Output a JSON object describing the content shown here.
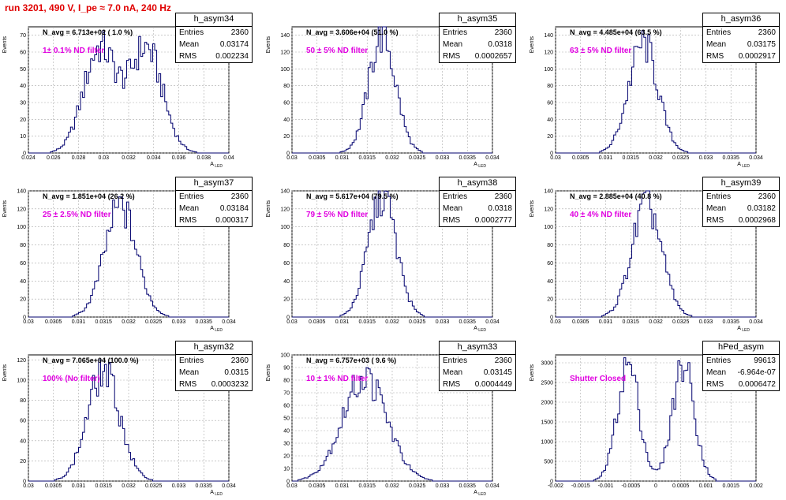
{
  "title": "run 3201,   490 V, I_pe ≈ 7.0 nA, 240 Hz",
  "chart_data": [
    {
      "type": "histogram",
      "name": "h_asym34",
      "navg": "N_avg = 6.713e+02 ( 1.0 %)",
      "filter": "1± 0.1% ND filter",
      "stats": {
        "Entries": "2360",
        "Mean": "0.03174",
        "RMS": "0.002234"
      },
      "xlim": [
        0.024,
        0.04
      ],
      "ylim": [
        0,
        75
      ],
      "xticks": [
        "0.024",
        "0.026",
        "0.028",
        "0.03",
        "0.032",
        "0.034",
        "0.036",
        "0.038",
        "0.04"
      ],
      "yticks": [
        0,
        10,
        20,
        30,
        40,
        50,
        60,
        70
      ],
      "ylabel": "Events",
      "xlabel": "A_{LED}",
      "mode": "bimodal",
      "peaks": [
        0.0297,
        0.0334
      ],
      "sigma": 0.0013,
      "peak_height": 62
    },
    {
      "type": "histogram",
      "name": "h_asym35",
      "navg": "N_avg = 3.606e+04 (51.0 %)",
      "filter": "50 ± 5% ND filter",
      "stats": {
        "Entries": "2360",
        "Mean": "0.0318",
        "RMS": "0.0002657"
      },
      "xlim": [
        0.03,
        0.034
      ],
      "ylim": [
        0,
        150
      ],
      "xticks": [
        "0.03",
        "0.0305",
        "0.031",
        "0.0315",
        "0.032",
        "0.0325",
        "0.033",
        "0.0335",
        "0.034"
      ],
      "yticks": [
        0,
        20,
        40,
        60,
        80,
        100,
        120,
        140
      ],
      "ylabel": "Events",
      "xlabel": "A_{LED}",
      "mode": "gauss",
      "peaks": [
        0.0318
      ],
      "sigma": 0.000266,
      "peak_height": 140
    },
    {
      "type": "histogram",
      "name": "h_asym36",
      "navg": "N_avg = 4.485e+04 (63.5 %)",
      "filter": "63 ± 5% ND filter",
      "stats": {
        "Entries": "2360",
        "Mean": "0.03175",
        "RMS": "0.0002917"
      },
      "xlim": [
        0.03,
        0.034
      ],
      "ylim": [
        0,
        150
      ],
      "xticks": [
        "0.03",
        "0.0305",
        "0.031",
        "0.0315",
        "0.032",
        "0.0325",
        "0.033",
        "0.0335",
        "0.034"
      ],
      "yticks": [
        0,
        20,
        40,
        60,
        80,
        100,
        120,
        140
      ],
      "ylabel": "Events",
      "xlabel": "A_{LED}",
      "mode": "gauss",
      "peaks": [
        0.03175
      ],
      "sigma": 0.00029,
      "peak_height": 130
    },
    {
      "type": "histogram",
      "name": "h_asym37",
      "navg": "N_avg = 1.851e+04 (26.2 %)",
      "filter": "25 ± 2.5% ND filter",
      "stats": {
        "Entries": "2360",
        "Mean": "0.03184",
        "RMS": "0.000317"
      },
      "xlim": [
        0.03,
        0.034
      ],
      "ylim": [
        0,
        140
      ],
      "xticks": [
        "0.03",
        "0.0305",
        "0.031",
        "0.0315",
        "0.032",
        "0.0325",
        "0.033",
        "0.0335",
        "0.034"
      ],
      "yticks": [
        0,
        20,
        40,
        60,
        80,
        100,
        120,
        140
      ],
      "ylabel": "Events",
      "xlabel": "A_{LED}",
      "mode": "gauss",
      "peaks": [
        0.03184
      ],
      "sigma": 0.000317,
      "peak_height": 122
    },
    {
      "type": "histogram",
      "name": "h_asym38",
      "navg": "N_avg = 5.617e+04 (79.5 %)",
      "filter": "79 ± 5% ND filter",
      "stats": {
        "Entries": "2360",
        "Mean": "0.0318",
        "RMS": "0.0002777"
      },
      "xlim": [
        0.03,
        0.034
      ],
      "ylim": [
        0,
        140
      ],
      "xticks": [
        "0.03",
        "0.0305",
        "0.031",
        "0.0315",
        "0.032",
        "0.0325",
        "0.033",
        "0.0335",
        "0.034"
      ],
      "yticks": [
        0,
        20,
        40,
        60,
        80,
        100,
        120,
        140
      ],
      "ylabel": "Events",
      "xlabel": "A_{LED}",
      "mode": "gauss",
      "peaks": [
        0.0318
      ],
      "sigma": 0.000278,
      "peak_height": 135
    },
    {
      "type": "histogram",
      "name": "h_asym39",
      "navg": "N_avg = 2.885e+04 (40.8 %)",
      "filter": "40 ± 4% ND filter",
      "stats": {
        "Entries": "2360",
        "Mean": "0.03182",
        "RMS": "0.0002968"
      },
      "xlim": [
        0.03,
        0.034
      ],
      "ylim": [
        0,
        140
      ],
      "xticks": [
        "0.03",
        "0.0305",
        "0.031",
        "0.0315",
        "0.032",
        "0.0325",
        "0.033",
        "0.0335",
        "0.034"
      ],
      "yticks": [
        0,
        20,
        40,
        60,
        80,
        100,
        120,
        140
      ],
      "ylabel": "Events",
      "xlabel": "A_{LED}",
      "mode": "gauss",
      "peaks": [
        0.03182
      ],
      "sigma": 0.000297,
      "peak_height": 125
    },
    {
      "type": "histogram",
      "name": "h_asym32",
      "navg": "N_avg = 7.065e+04 (100.0 %)",
      "filter": "100% (No filter)",
      "stats": {
        "Entries": "2360",
        "Mean": "0.0315",
        "RMS": "0.0003232"
      },
      "xlim": [
        0.03,
        0.034
      ],
      "ylim": [
        0,
        125
      ],
      "xticks": [
        "0.03",
        "0.0305",
        "0.031",
        "0.0315",
        "0.032",
        "0.0325",
        "0.033",
        "0.0335",
        "0.034"
      ],
      "yticks": [
        0,
        20,
        40,
        60,
        80,
        100,
        120
      ],
      "ylabel": "Events",
      "xlabel": "A_{LED}",
      "mode": "gauss",
      "peaks": [
        0.0315
      ],
      "sigma": 0.000323,
      "peak_height": 108
    },
    {
      "type": "histogram",
      "name": "h_asym33",
      "navg": "N_avg = 6.757e+03 ( 9.6 %)",
      "filter": "10 ± 1% ND filter",
      "stats": {
        "Entries": "2360",
        "Mean": "0.03145",
        "RMS": "0.0004449"
      },
      "xlim": [
        0.03,
        0.034
      ],
      "ylim": [
        0,
        100
      ],
      "xticks": [
        "0.03",
        "0.0305",
        "0.031",
        "0.0315",
        "0.032",
        "0.0325",
        "0.033",
        "0.0335",
        "0.034"
      ],
      "yticks": [
        0,
        10,
        20,
        30,
        40,
        50,
        60,
        70,
        80,
        90,
        100
      ],
      "ylabel": "Events",
      "xlabel": "A_{LED}",
      "mode": "gauss",
      "peaks": [
        0.03145
      ],
      "sigma": 0.000445,
      "peak_height": 82
    },
    {
      "type": "histogram",
      "name": "hPed_asym",
      "navg": "",
      "filter": "Shutter Closed",
      "stats": {
        "Entries": "99613",
        "Mean": "-6.964e-07",
        "RMS": "0.0006472"
      },
      "xlim": [
        -0.002,
        0.002
      ],
      "ylim": [
        0,
        3200
      ],
      "xticks": [
        "-0.002",
        "-0.0015",
        "-0.001",
        "-0.0005",
        "0",
        "0.0005",
        "0.001",
        "0.0015",
        "0.002"
      ],
      "yticks": [
        0,
        500,
        1000,
        1500,
        2000,
        2500,
        3000
      ],
      "ylabel": "Events",
      "xlabel": "",
      "mode": "bimodal",
      "peaks": [
        -0.00055,
        0.00055
      ],
      "sigma": 0.00022,
      "peak_height": 2950
    }
  ]
}
